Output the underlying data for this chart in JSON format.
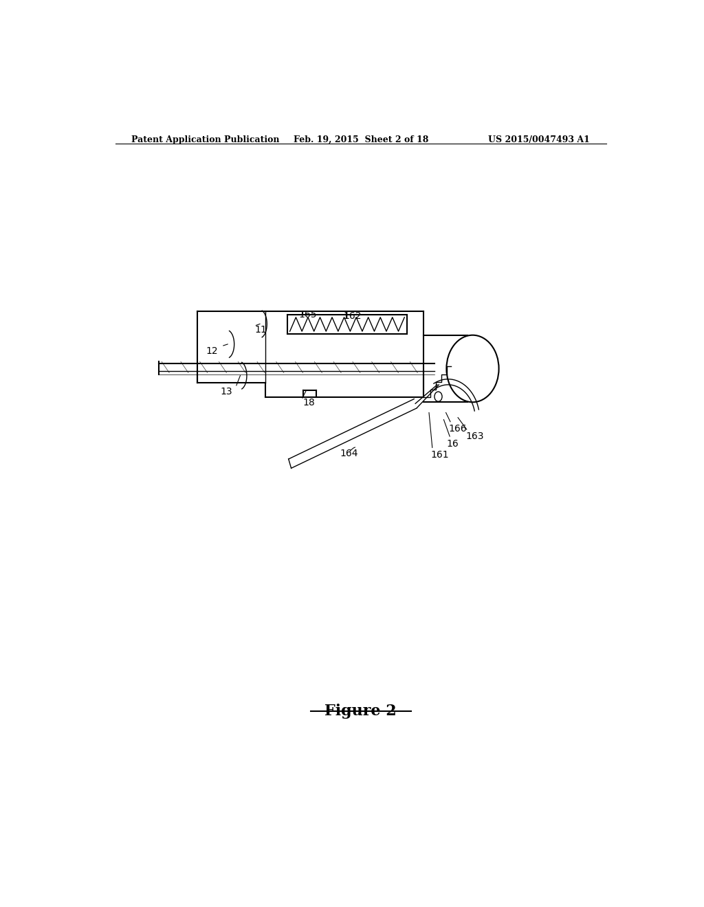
{
  "background_color": "#ffffff",
  "header_left": "Patent Application Publication",
  "header_center": "Feb. 19, 2015  Sheet 2 of 18",
  "header_right": "US 2015/0047493 A1",
  "figure_label": "Figure 2"
}
